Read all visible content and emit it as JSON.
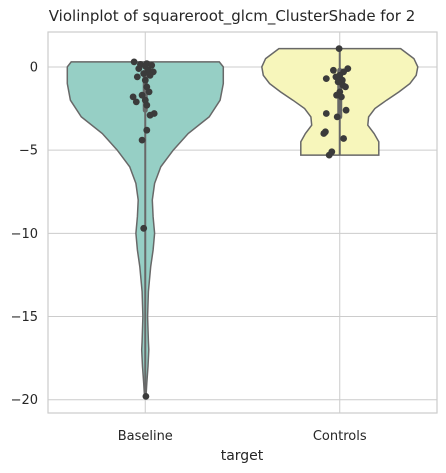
{
  "chart_data": {
    "type": "violin",
    "title": "Violinplot of squareroot_glcm_ClusterShade for 2",
    "xlabel": "target",
    "ylabel": "",
    "ylim": [
      -20.8,
      2.1
    ],
    "yticks": [
      0,
      -5,
      -10,
      -15,
      -20
    ],
    "grid": true,
    "categories": [
      "Baseline",
      "Controls"
    ],
    "colors": [
      "#96cfc5",
      "#f7f6bb"
    ],
    "series": [
      {
        "category": "Baseline",
        "max": 0.3,
        "min": -19.8,
        "median": -1.5,
        "q1": -2.6,
        "q3": -0.3,
        "profile": [
          [
            0.3,
            0.95
          ],
          [
            0.0,
            1.0
          ],
          [
            -1.0,
            1.0
          ],
          [
            -2.0,
            0.96
          ],
          [
            -3.0,
            0.82
          ],
          [
            -4.0,
            0.55
          ],
          [
            -5.0,
            0.36
          ],
          [
            -6.0,
            0.2
          ],
          [
            -7.0,
            0.12
          ],
          [
            -8.0,
            0.09
          ],
          [
            -9.0,
            0.1
          ],
          [
            -10.0,
            0.12
          ],
          [
            -11.0,
            0.1
          ],
          [
            -12.0,
            0.07
          ],
          [
            -13.5,
            0.04
          ],
          [
            -15.0,
            0.03
          ],
          [
            -16.5,
            0.04
          ],
          [
            -17.0,
            0.045
          ],
          [
            -18.0,
            0.035
          ],
          [
            -19.0,
            0.02
          ],
          [
            -19.8,
            0.01
          ]
        ],
        "points": [
          [
            -0.35,
            0.3
          ],
          [
            0.05,
            0.2
          ],
          [
            -0.15,
            0.15
          ],
          [
            0.2,
            0.1
          ],
          [
            0.0,
            0.05
          ],
          [
            -0.2,
            -0.1
          ],
          [
            0.1,
            -0.2
          ],
          [
            0.25,
            -0.3
          ],
          [
            -0.05,
            -0.4
          ],
          [
            0.15,
            -0.5
          ],
          [
            -0.25,
            -0.6
          ],
          [
            0.0,
            -0.8
          ],
          [
            0.05,
            -1.2
          ],
          [
            0.12,
            -1.5
          ],
          [
            -0.1,
            -1.7
          ],
          [
            -0.38,
            -1.8
          ],
          [
            0.0,
            -2.0
          ],
          [
            -0.28,
            -2.1
          ],
          [
            0.05,
            -2.3
          ],
          [
            0.28,
            -2.8
          ],
          [
            0.15,
            -2.9
          ],
          [
            0.05,
            -3.8
          ],
          [
            -0.1,
            -4.4
          ],
          [
            -0.05,
            -9.7
          ],
          [
            0.02,
            -19.8
          ]
        ]
      },
      {
        "category": "Controls",
        "max": 1.1,
        "min": -5.3,
        "median": -1.6,
        "q1": -3.0,
        "q3": -0.2,
        "profile": [
          [
            1.1,
            0.78
          ],
          [
            0.5,
            0.95
          ],
          [
            0.0,
            1.0
          ],
          [
            -0.5,
            0.98
          ],
          [
            -1.0,
            0.9
          ],
          [
            -1.5,
            0.76
          ],
          [
            -2.0,
            0.6
          ],
          [
            -2.5,
            0.45
          ],
          [
            -3.0,
            0.37
          ],
          [
            -3.5,
            0.36
          ],
          [
            -4.0,
            0.44
          ],
          [
            -4.5,
            0.5
          ],
          [
            -5.0,
            0.5
          ],
          [
            -5.3,
            0.5
          ]
        ],
        "points": [
          [
            -0.02,
            1.1
          ],
          [
            0.25,
            -0.1
          ],
          [
            -0.2,
            -0.2
          ],
          [
            0.12,
            -0.3
          ],
          [
            0.0,
            -0.5
          ],
          [
            -0.12,
            -0.6
          ],
          [
            -0.42,
            -0.7
          ],
          [
            0.08,
            -0.8
          ],
          [
            -0.05,
            -0.9
          ],
          [
            0.1,
            -1.1
          ],
          [
            0.18,
            -1.2
          ],
          [
            0.0,
            -1.5
          ],
          [
            -0.1,
            -1.7
          ],
          [
            0.05,
            -1.8
          ],
          [
            0.2,
            -2.6
          ],
          [
            -0.42,
            -2.8
          ],
          [
            -0.08,
            -3.0
          ],
          [
            -0.45,
            -3.9
          ],
          [
            -0.5,
            -4.0
          ],
          [
            0.12,
            -4.3
          ],
          [
            -0.25,
            -5.1
          ],
          [
            -0.33,
            -5.3
          ]
        ]
      }
    ]
  }
}
